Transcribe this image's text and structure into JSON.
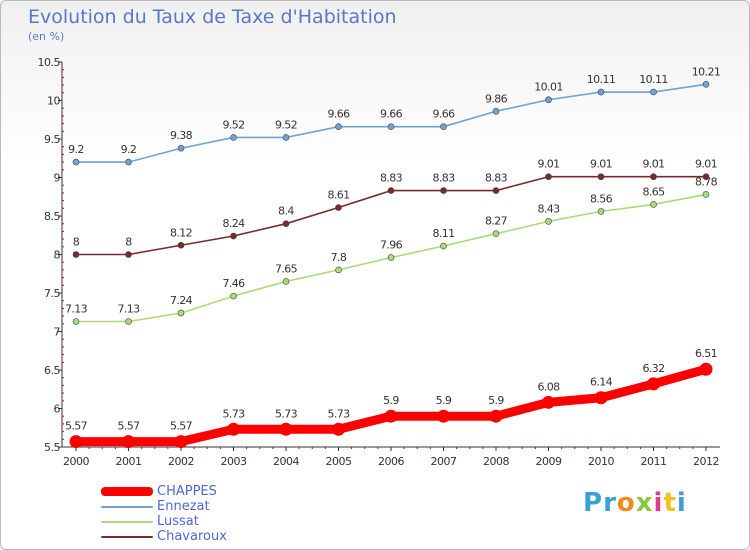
{
  "title": "Evolution du Taux de Taxe d'Habitation",
  "subtitle": "(en %)",
  "logo": {
    "text": "Proxiti",
    "letters": [
      "P",
      "r",
      "o",
      "x",
      "i",
      "t",
      "i"
    ],
    "colors": [
      "#3aa0d8",
      "#3aa0d8",
      "#f08a1c",
      "#8ac83c",
      "#e23a8e",
      "#f0c21c",
      "#3aa0d8"
    ]
  },
  "chart_data": {
    "type": "line",
    "x": [
      2000,
      2001,
      2002,
      2003,
      2004,
      2005,
      2006,
      2007,
      2008,
      2009,
      2010,
      2011,
      2012
    ],
    "ylim": [
      5.5,
      10.5
    ],
    "yticks": [
      5.5,
      6,
      6.5,
      7,
      7.5,
      8,
      8.5,
      9,
      9.5,
      10,
      10.5
    ],
    "grid": false,
    "legend": "bottom-left",
    "series": [
      {
        "name": "CHAPPES",
        "color": "#ff0000",
        "labels": [
          "5.57",
          "5.57",
          "5.57",
          "5.73",
          "5.73",
          "5.73",
          "5.9",
          "5.9",
          "5.9",
          "6.08",
          "6.14",
          "6.32",
          "6.51"
        ],
        "values": [
          5.57,
          5.57,
          5.57,
          5.73,
          5.73,
          5.73,
          5.9,
          5.9,
          5.9,
          6.08,
          6.14,
          6.32,
          6.51
        ]
      },
      {
        "name": "Ennezat",
        "color": "#6fa3d6",
        "labels": [
          "9.2",
          "9.2",
          "9.38",
          "9.52",
          "9.52",
          "9.66",
          "9.66",
          "9.66",
          "9.86",
          "10.01",
          "10.11",
          "10.11",
          "10.21"
        ],
        "values": [
          9.2,
          9.2,
          9.38,
          9.52,
          9.52,
          9.66,
          9.66,
          9.66,
          9.86,
          10.01,
          10.11,
          10.11,
          10.21
        ]
      },
      {
        "name": "Lussat",
        "color": "#a9dc78",
        "labels": [
          "7.13",
          "7.13",
          "7.24",
          "7.46",
          "7.65",
          "7.8",
          "7.96",
          "8.11",
          "8.27",
          "8.43",
          "8.56",
          "8.65",
          "8.78"
        ],
        "values": [
          7.13,
          7.13,
          7.24,
          7.46,
          7.65,
          7.8,
          7.96,
          8.11,
          8.27,
          8.43,
          8.56,
          8.65,
          8.78
        ]
      },
      {
        "name": "Chavaroux",
        "color": "#7a2a2a",
        "labels": [
          "8",
          "8",
          "8.12",
          "8.24",
          "8.4",
          "8.61",
          "8.83",
          "8.83",
          "8.83",
          "9.01",
          "9.01",
          "9.01",
          "9.01"
        ],
        "values": [
          8,
          8,
          8.12,
          8.24,
          8.4,
          8.61,
          8.83,
          8.83,
          8.83,
          9.01,
          9.01,
          9.01,
          9.01
        ]
      }
    ]
  }
}
